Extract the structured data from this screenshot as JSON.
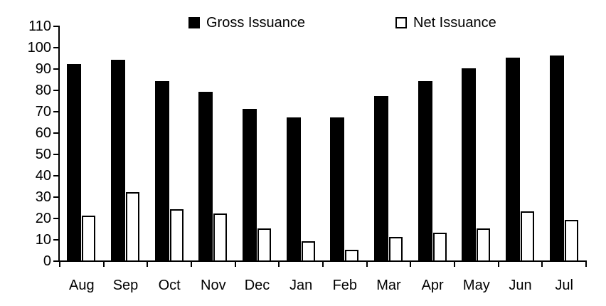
{
  "chart_data": {
    "type": "bar",
    "title": "",
    "categories": [
      "Aug",
      "Sep",
      "Oct",
      "Nov",
      "Dec",
      "Jan",
      "Feb",
      "Mar",
      "Apr",
      "May",
      "Jun",
      "Jul"
    ],
    "series": [
      {
        "name": "Gross Issuance",
        "fill": "#000000",
        "stroke": "#000000",
        "values": [
          92,
          94,
          84,
          79,
          71,
          67,
          67,
          77,
          84,
          90,
          95,
          96
        ]
      },
      {
        "name": "Net Issuance",
        "fill": "#ffffff",
        "stroke": "#000000",
        "values": [
          21,
          32,
          24,
          22,
          15,
          9,
          5,
          11,
          13,
          15,
          23,
          19
        ]
      }
    ],
    "ylim": [
      0,
      110
    ],
    "ytick_step": 10,
    "ytick_labels": [
      "0",
      "10",
      "20",
      "30",
      "40",
      "50",
      "60",
      "70",
      "80",
      "90",
      "100",
      "110"
    ],
    "grid": "off",
    "legend_position": "top",
    "axis_color": "#000000",
    "background": "#ffffff"
  }
}
